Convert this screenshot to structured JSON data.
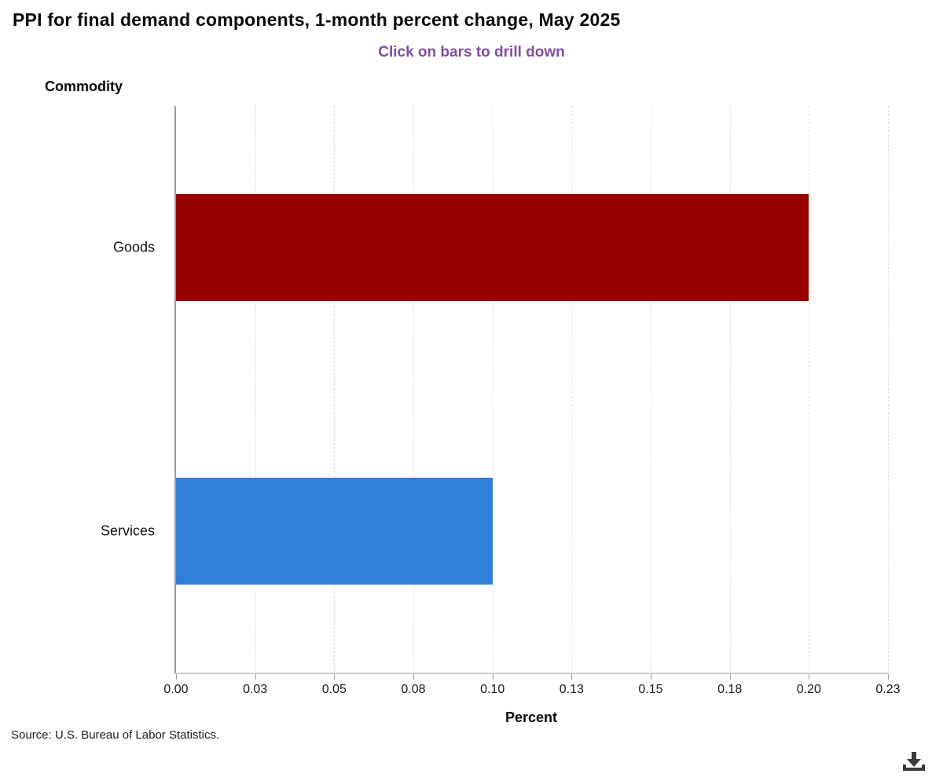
{
  "chart_data": {
    "type": "bar",
    "orientation": "horizontal",
    "title": "PPI for final demand components, 1-month percent change, May 2025",
    "subtitle": "Click on bars to drill down",
    "categories": [
      "Goods",
      "Services"
    ],
    "values": [
      0.2,
      0.1
    ],
    "bar_colors": [
      "#990000",
      "#2f7ed8"
    ],
    "xlabel": "Percent",
    "ylabel": "Commodity",
    "xlim": [
      0,
      0.225
    ],
    "xticks": {
      "values": [
        0,
        0.025,
        0.05,
        0.075,
        0.1,
        0.125,
        0.15,
        0.175,
        0.2,
        0.225
      ],
      "labels": [
        "0.00",
        "0.03",
        "0.05",
        "0.08",
        "0.10",
        "0.13",
        "0.15",
        "0.18",
        "0.20",
        "0.23"
      ]
    },
    "grid": "vertical-dashed",
    "legend": "none"
  },
  "footer": {
    "source": "Source: U.S. Bureau of Labor Statistics."
  },
  "icons": {
    "download": "download-icon"
  },
  "colors": {
    "subtitle": "#7d4f9e",
    "goods_bar": "#990000",
    "services_bar": "#2f7ed8",
    "axis_line": "#9b9b9b",
    "gridline": "#dcdcdc"
  }
}
